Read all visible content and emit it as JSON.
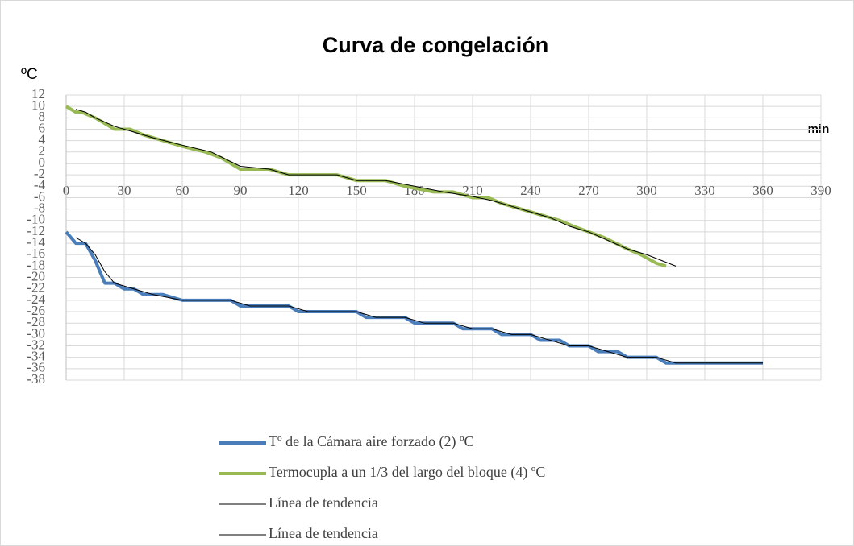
{
  "chart_data": {
    "type": "line",
    "title": "Curva de congelación",
    "y_label": "ºC",
    "x_label": "min",
    "xlim": [
      0,
      390
    ],
    "xticks": [
      0,
      30,
      60,
      90,
      120,
      150,
      180,
      210,
      240,
      270,
      300,
      330,
      360,
      390
    ],
    "ylim": [
      -38,
      12
    ],
    "yticks": [
      -38,
      -36,
      -34,
      -32,
      -30,
      -28,
      -26,
      -24,
      -22,
      -20,
      -18,
      -16,
      -14,
      -12,
      -10,
      -8,
      -6,
      -4,
      -2,
      0,
      2,
      4,
      6,
      8,
      10,
      12
    ],
    "grid": true,
    "series": [
      {
        "name": "Tº de la Cámara aire forzado (2) ºC",
        "color": "#4a7ebb",
        "width": 4,
        "x": [
          0,
          5,
          10,
          15,
          20,
          25,
          30,
          35,
          40,
          50,
          60,
          85,
          90,
          115,
          120,
          150,
          155,
          175,
          180,
          200,
          205,
          220,
          225,
          240,
          245,
          255,
          260,
          270,
          275,
          285,
          290,
          305,
          310,
          360
        ],
        "values": [
          -12,
          -14,
          -14,
          -17,
          -21,
          -21,
          -22,
          -22,
          -23,
          -23,
          -24,
          -24,
          -25,
          -25,
          -26,
          -26,
          -27,
          -27,
          -28,
          -28,
          -29,
          -29,
          -30,
          -30,
          -31,
          -31,
          -32,
          -32,
          -33,
          -33,
          -34,
          -34,
          -35,
          -35
        ]
      },
      {
        "name": "Termocupla a un  1/3 del largo  del bloque  (4) ºC",
        "color": "#98b954",
        "width": 4,
        "x": [
          0,
          5,
          8,
          15,
          25,
          33,
          40,
          50,
          60,
          72,
          80,
          90,
          105,
          115,
          140,
          150,
          165,
          175,
          190,
          200,
          210,
          218,
          225,
          235,
          245,
          255,
          262,
          270,
          278,
          290,
          297,
          305,
          310
        ],
        "values": [
          10,
          9,
          9,
          8,
          6,
          6,
          5,
          4,
          3,
          2,
          1,
          -1,
          -1,
          -2,
          -2,
          -3,
          -3,
          -4,
          -5,
          -5,
          -6,
          -6,
          -7,
          -8,
          -9,
          -10,
          -11,
          -12,
          -13,
          -15,
          -16,
          -17.5,
          -18
        ]
      },
      {
        "name": "Línea de tendencia",
        "color": "#000000",
        "width": 1,
        "x": [
          5,
          10,
          15,
          20,
          25,
          35,
          45,
          60,
          85,
          95,
          115,
          125,
          150,
          160,
          175,
          185,
          200,
          210,
          220,
          230,
          240,
          250,
          260,
          270,
          280,
          290,
          305,
          315,
          360
        ],
        "values": [
          -13,
          -14,
          -16,
          -19,
          -21,
          -22,
          -23,
          -24,
          -24,
          -25,
          -25,
          -26,
          -26,
          -27,
          -27,
          -28,
          -28,
          -29,
          -29,
          -30,
          -30,
          -31,
          -32,
          -32,
          -33,
          -34,
          -34,
          -35,
          -35
        ]
      },
      {
        "name": "Línea de tendencia",
        "color": "#000000",
        "width": 1,
        "x": [
          5,
          10,
          15,
          25,
          35,
          45,
          60,
          75,
          90,
          105,
          115,
          140,
          150,
          165,
          180,
          195,
          210,
          220,
          235,
          250,
          260,
          270,
          280,
          290,
          300,
          315
        ],
        "values": [
          9.5,
          9,
          8,
          6.5,
          5.5,
          4.5,
          3.2,
          2,
          -0.5,
          -1,
          -2,
          -2,
          -3,
          -3,
          -4,
          -5,
          -5.8,
          -6.5,
          -8,
          -9.5,
          -11,
          -12,
          -13.5,
          -15,
          -16,
          -18
        ]
      }
    ]
  }
}
